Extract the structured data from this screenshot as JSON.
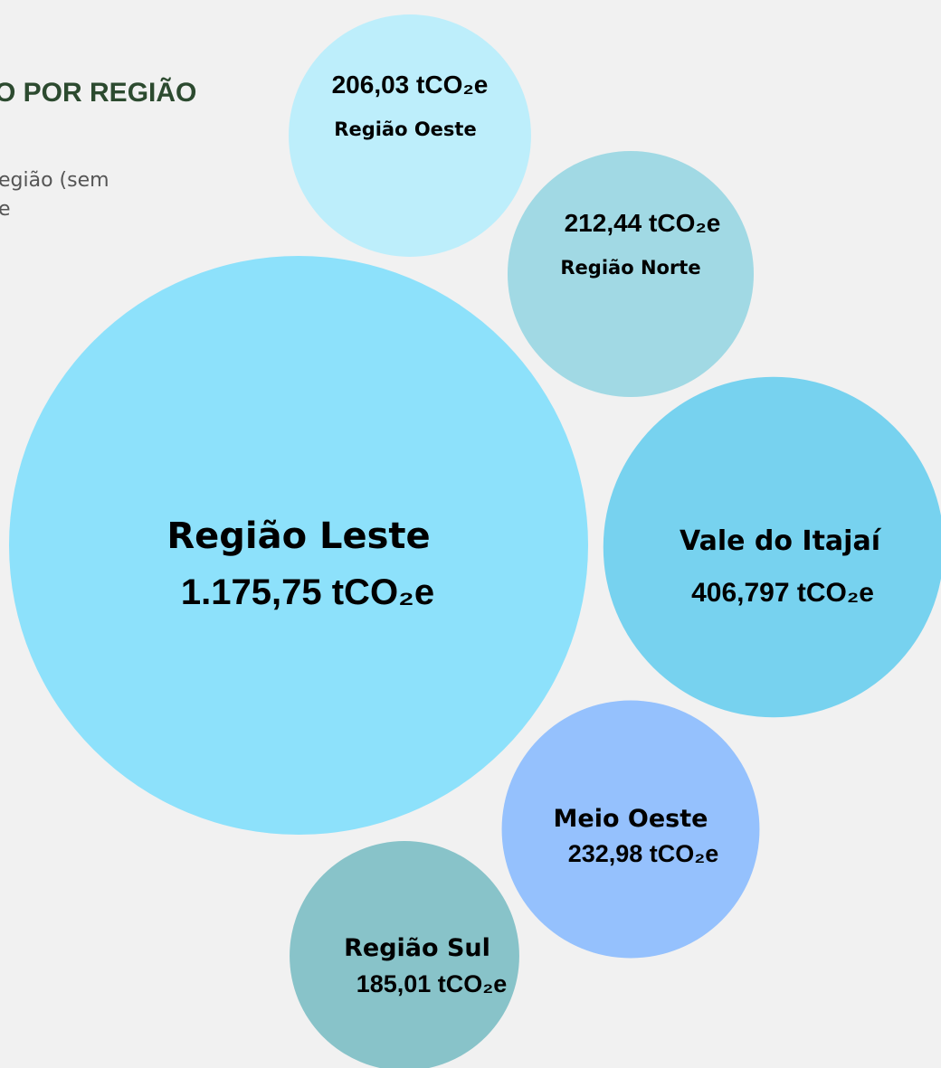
{
  "chart_data": {
    "type": "bubble",
    "title": "O POR REGIÃO",
    "subtitle": [
      "egião (sem",
      "e"
    ],
    "categories": [
      "Região Oeste",
      "Região Norte",
      "Região Leste",
      "Vale do Itajaí",
      "Meio Oeste",
      "Região Sul"
    ],
    "values": [
      206.03,
      212.44,
      1175.75,
      406.797,
      232.98,
      185.01
    ],
    "value_labels": [
      "206,03 tCO₂e",
      "212,44 tCO₂e",
      "1.175,75 tCO₂e",
      "406,797 tCO₂e",
      "232,98 tCO₂e",
      "185,01 tCO₂e"
    ],
    "colors": [
      "#bdeefb",
      "#a1d9e4",
      "#8de1fb",
      "#77d2ef",
      "#95c1fd",
      "#88c3c9"
    ]
  }
}
